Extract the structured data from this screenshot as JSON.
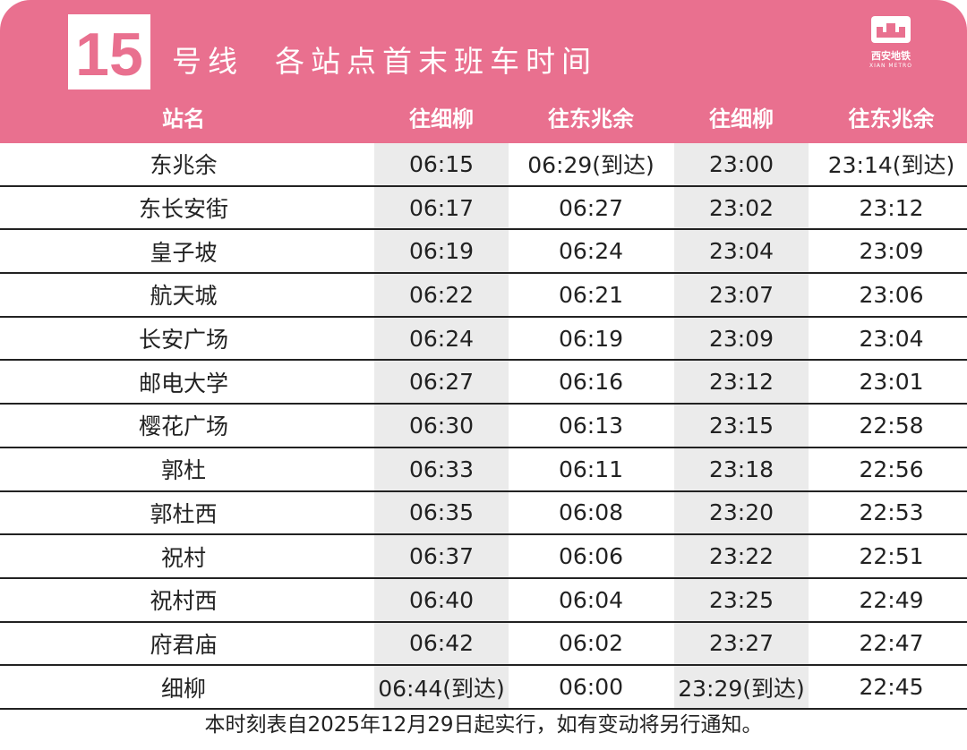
{
  "header": {
    "line": "15",
    "title": "号线  各站点首末班车时间"
  },
  "logo": {
    "name": "西安地铁",
    "sub": "XIAN METRO"
  },
  "table": {
    "columns": [
      "站名",
      "往细柳",
      "往东兆余",
      "往细柳",
      "往东兆余"
    ],
    "rows": [
      [
        "东兆余",
        "06:15",
        "06:29(到达)",
        "23:00",
        "23:14(到达)"
      ],
      [
        "东长安街",
        "06:17",
        "06:27",
        "23:02",
        "23:12"
      ],
      [
        "皇子坡",
        "06:19",
        "06:24",
        "23:04",
        "23:09"
      ],
      [
        "航天城",
        "06:22",
        "06:21",
        "23:07",
        "23:06"
      ],
      [
        "长安广场",
        "06:24",
        "06:19",
        "23:09",
        "23:04"
      ],
      [
        "邮电大学",
        "06:27",
        "06:16",
        "23:12",
        "23:01"
      ],
      [
        "樱花广场",
        "06:30",
        "06:13",
        "23:15",
        "22:58"
      ],
      [
        "郭杜",
        "06:33",
        "06:11",
        "23:18",
        "22:56"
      ],
      [
        "郭杜西",
        "06:35",
        "06:08",
        "23:20",
        "22:53"
      ],
      [
        "祝村",
        "06:37",
        "06:06",
        "23:22",
        "22:51"
      ],
      [
        "祝村西",
        "06:40",
        "06:04",
        "23:25",
        "22:49"
      ],
      [
        "府君庙",
        "06:42",
        "06:02",
        "23:27",
        "22:47"
      ],
      [
        "细柳",
        "06:44(到达)",
        "06:00",
        "23:29(到达)",
        "22:45"
      ]
    ]
  },
  "footer": "本时刻表自2025年12月29日起实行，如有变动将另行通知。"
}
